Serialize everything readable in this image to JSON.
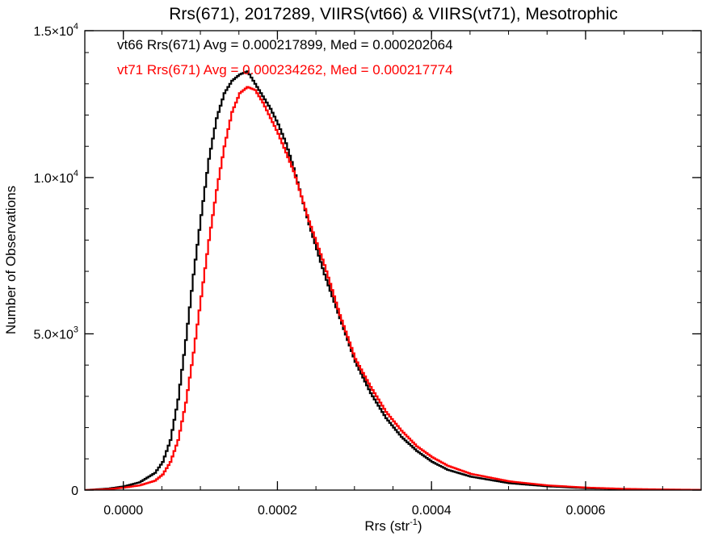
{
  "chart_data": {
    "type": "line",
    "title": "Rrs(671), 2017289, VIIRS(vt66) & VIIRS(vt71), Mesotrophic",
    "xlabel": "Rrs (str",
    "xlabel_sup": "-1",
    "xlabel_close": ")",
    "ylabel": "Number of Observations",
    "xlim": [
      -5e-05,
      0.00075
    ],
    "ylim": [
      0,
      14700
    ],
    "x_ticks": [
      {
        "value": 0.0,
        "label": "0.0000"
      },
      {
        "value": 0.0002,
        "label": "0.0002"
      },
      {
        "value": 0.0004,
        "label": "0.0004"
      },
      {
        "value": 0.0006,
        "label": "0.0006"
      }
    ],
    "y_ticks": [
      {
        "value": 0,
        "label": "0"
      },
      {
        "value": 5000,
        "label": "5.0×10",
        "exp": "3"
      },
      {
        "value": 10000,
        "label": "1.0×10",
        "exp": "4"
      },
      {
        "value": 14700,
        "label": "1.5×10",
        "exp": "4"
      }
    ],
    "grid": false,
    "legend_position": "top-left",
    "series": [
      {
        "name": "vt66 Rrs(671) Avg = 0.000217899, Med = 0.000202064",
        "color": "#000000",
        "x": [
          -5e-05,
          -2e-05,
          0.0,
          2e-05,
          4e-05,
          5e-05,
          6e-05,
          7e-05,
          8e-05,
          9e-05,
          0.0001,
          0.00011,
          0.00012,
          0.00013,
          0.00014,
          0.00015,
          0.00016,
          0.00017,
          0.00018,
          0.00019,
          0.0002,
          0.00021,
          0.00022,
          0.00023,
          0.00024,
          0.00025,
          0.00026,
          0.00027,
          0.00028,
          0.00029,
          0.0003,
          0.00032,
          0.00034,
          0.00036,
          0.00038,
          0.0004,
          0.00042,
          0.00045,
          0.0005,
          0.00055,
          0.0006,
          0.00065,
          0.0007,
          0.00075
        ],
        "values": [
          0,
          50,
          120,
          250,
          550,
          900,
          1600,
          2900,
          4800,
          6900,
          8800,
          10600,
          11900,
          12700,
          13100,
          13300,
          13400,
          13000,
          12600,
          12200,
          11700,
          11100,
          10300,
          9400,
          8500,
          7700,
          6900,
          6200,
          5500,
          4800,
          4100,
          3100,
          2300,
          1700,
          1250,
          900,
          650,
          430,
          220,
          120,
          60,
          30,
          15,
          5
        ]
      },
      {
        "name": "vt71 Rrs(671) Avg = 0.000234262, Med = 0.000217774",
        "color": "#ff0000",
        "x": [
          -5e-05,
          -2e-05,
          0.0,
          2e-05,
          4e-05,
          5e-05,
          6e-05,
          7e-05,
          8e-05,
          9e-05,
          0.0001,
          0.00011,
          0.00012,
          0.00013,
          0.00014,
          0.00015,
          0.00016,
          0.00017,
          0.00018,
          0.00019,
          0.0002,
          0.00021,
          0.00022,
          0.00023,
          0.00024,
          0.00025,
          0.00026,
          0.00027,
          0.00028,
          0.00029,
          0.0003,
          0.00032,
          0.00034,
          0.00036,
          0.00038,
          0.0004,
          0.00042,
          0.00045,
          0.0005,
          0.00055,
          0.0006,
          0.00065,
          0.0007,
          0.00075
        ],
        "values": [
          0,
          30,
          80,
          150,
          300,
          500,
          900,
          1600,
          2800,
          4400,
          6200,
          8000,
          9600,
          11000,
          12100,
          12700,
          12900,
          12800,
          12400,
          11900,
          11400,
          10800,
          10200,
          9400,
          8600,
          7900,
          7200,
          6400,
          5600,
          4900,
          4200,
          3300,
          2500,
          1900,
          1400,
          1050,
          780,
          520,
          280,
          150,
          80,
          40,
          20,
          8
        ]
      }
    ]
  }
}
